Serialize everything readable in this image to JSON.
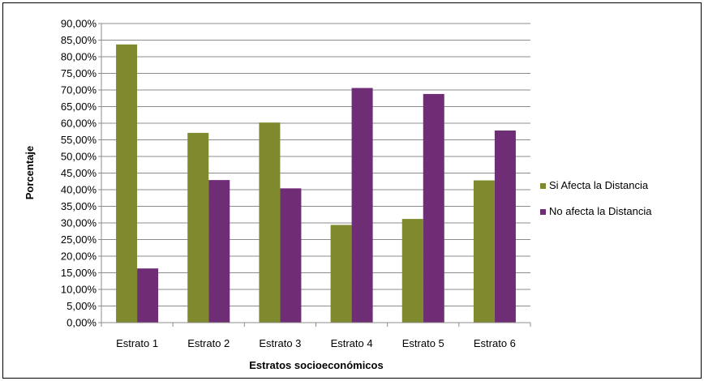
{
  "chart_data": {
    "type": "bar",
    "title": "",
    "xlabel": "Estratos socioeconómicos",
    "ylabel": "Porcentaje",
    "categories": [
      "Estrato 1",
      "Estrato 2",
      "Estrato 3",
      "Estrato 4",
      "Estrato 5",
      "Estrato 6"
    ],
    "series": [
      {
        "name": "Si Afecta la Distancia",
        "color": "#7f8a2e",
        "values": [
          0.837,
          0.571,
          0.602,
          0.294,
          0.312,
          0.428
        ]
      },
      {
        "name": "No afecta la Distancia",
        "color": "#6e2d74",
        "values": [
          0.163,
          0.429,
          0.404,
          0.706,
          0.688,
          0.578
        ]
      }
    ],
    "ylim": [
      0,
      0.9
    ],
    "ytick_step": 0.05,
    "ytick_format": "percent-2dec-comma",
    "grid": true,
    "legend_position": "right"
  }
}
